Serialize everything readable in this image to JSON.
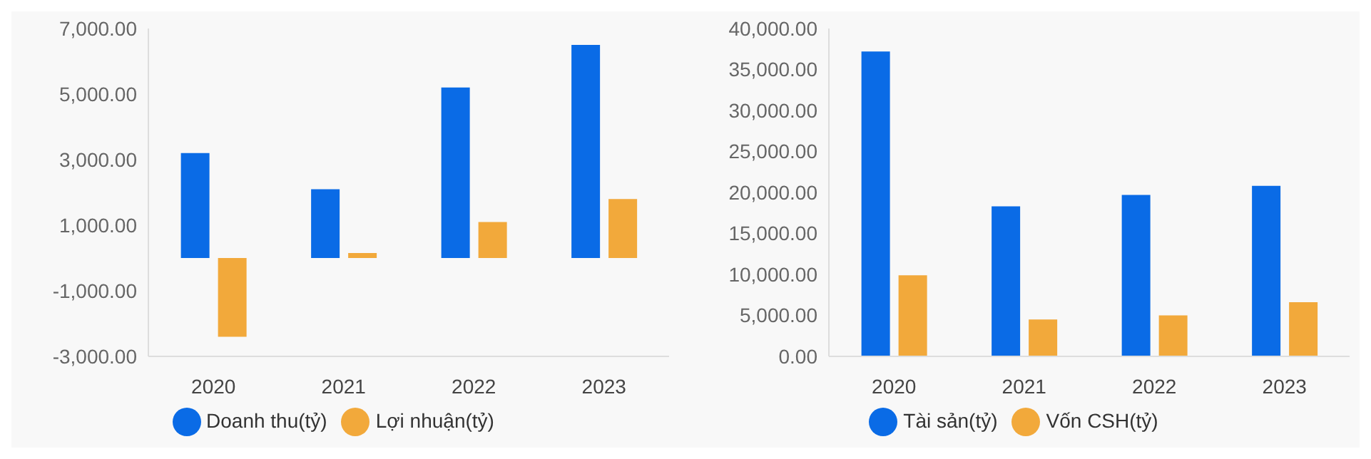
{
  "chart_data": [
    {
      "type": "bar",
      "categories": [
        "2020",
        "2021",
        "2022",
        "2023"
      ],
      "series": [
        {
          "name": "Doanh thu(tỷ)",
          "color": "#0a6be6",
          "values": [
            3200,
            2100,
            5200,
            6500
          ]
        },
        {
          "name": "Lợi nhuận(tỷ)",
          "color": "#f2a93b",
          "values": [
            -2400,
            150,
            1100,
            1800
          ]
        }
      ],
      "ylim": [
        -3000,
        7000
      ],
      "yticks": [
        {
          "value": -3000,
          "label": "-3,000.00"
        },
        {
          "value": -1000,
          "label": "-1,000.00"
        },
        {
          "value": 1000,
          "label": "1,000.00"
        },
        {
          "value": 3000,
          "label": "3,000.00"
        },
        {
          "value": 5000,
          "label": "5,000.00"
        },
        {
          "value": 7000,
          "label": "7,000.00"
        }
      ],
      "grid": false,
      "legend": "bottom",
      "marker": "circle"
    },
    {
      "type": "bar",
      "categories": [
        "2020",
        "2021",
        "2022",
        "2023"
      ],
      "series": [
        {
          "name": "Tài sản(tỷ)",
          "color": "#0a6be6",
          "values": [
            37200,
            18300,
            19700,
            20800
          ]
        },
        {
          "name": "Vốn CSH(tỷ)",
          "color": "#f2a93b",
          "values": [
            9900,
            4500,
            5000,
            6600
          ]
        }
      ],
      "ylim": [
        0,
        40000
      ],
      "yticks": [
        {
          "value": 0,
          "label": "0.00"
        },
        {
          "value": 5000,
          "label": "5,000.00"
        },
        {
          "value": 10000,
          "label": "10,000.00"
        },
        {
          "value": 15000,
          "label": "15,000.00"
        },
        {
          "value": 20000,
          "label": "20,000.00"
        },
        {
          "value": 25000,
          "label": "25,000.00"
        },
        {
          "value": 30000,
          "label": "30,000.00"
        },
        {
          "value": 35000,
          "label": "35,000.00"
        },
        {
          "value": 40000,
          "label": "40,000.00"
        }
      ],
      "grid": false,
      "legend": "bottom",
      "marker": "circle"
    }
  ]
}
